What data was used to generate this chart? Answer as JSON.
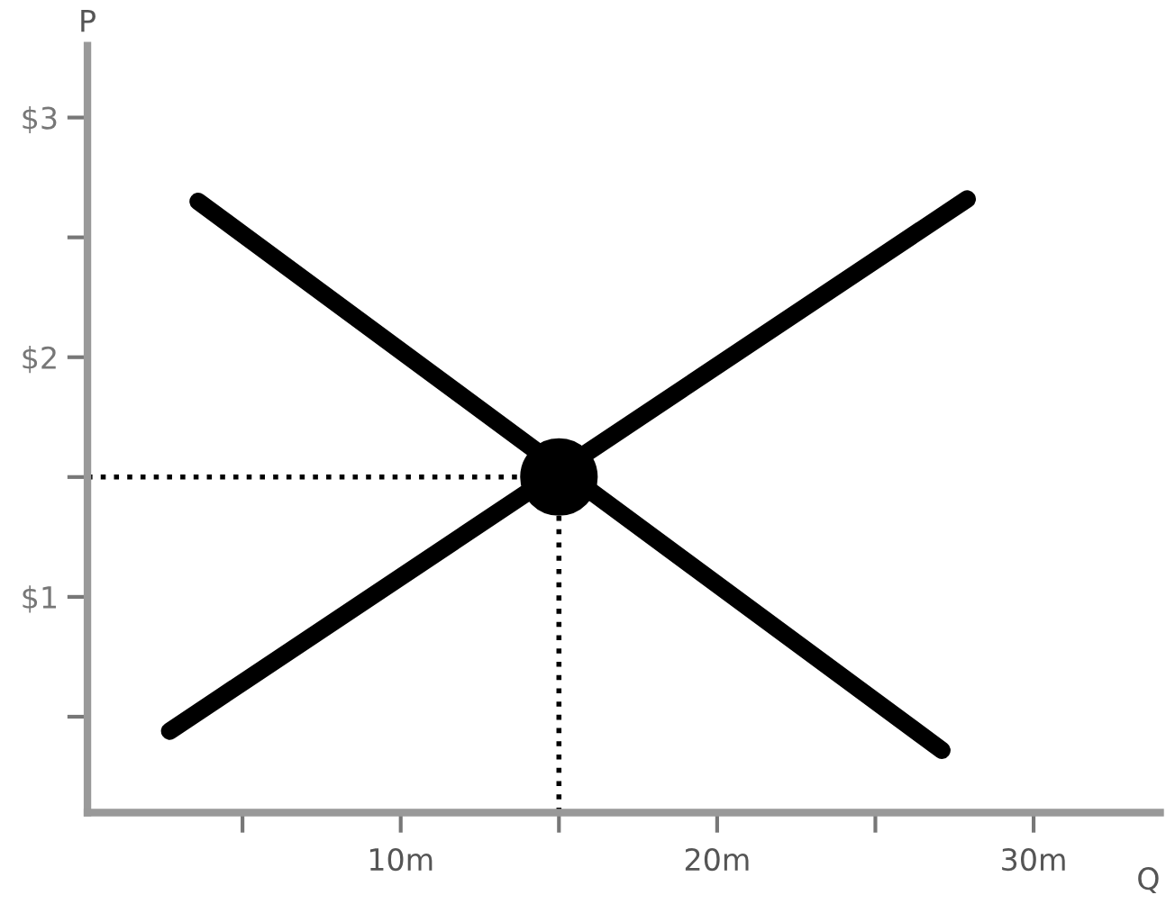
{
  "chart_data": {
    "type": "line",
    "xlabel": "Q",
    "ylabel": "P",
    "xlim": [
      0.1,
      34
    ],
    "xticks": [
      {
        "value": 5,
        "label": null
      },
      {
        "value": 10,
        "label": "10m"
      },
      {
        "value": 15,
        "label": null
      },
      {
        "value": 20,
        "label": "20m"
      },
      {
        "value": 25,
        "label": null
      },
      {
        "value": 30,
        "label": "30m"
      }
    ],
    "ylim": [
      0.1,
      3.3
    ],
    "yticks": [
      {
        "value": 0.5,
        "label": null
      },
      {
        "value": 1,
        "label": "$1"
      },
      {
        "value": 1.5,
        "label": null
      },
      {
        "value": 2,
        "label": "$2"
      },
      {
        "value": 2.5,
        "label": null
      },
      {
        "value": 3,
        "label": "$3"
      }
    ],
    "series": [
      {
        "color": "#000000",
        "x": [
          3.6,
          27.1
        ],
        "values": [
          2.65,
          0.36
        ]
      },
      {
        "color": "#000000",
        "x": [
          2.7,
          27.9
        ],
        "values": [
          0.44,
          2.66
        ]
      },
      {
        "type": "scatter",
        "marker": "circle",
        "color": "#000000",
        "x": [
          15
        ],
        "values": [
          1.5
        ]
      }
    ],
    "ref_lines": [
      {
        "axis": "y",
        "value": 1.5,
        "color": "#000000",
        "line_style": "dotted"
      },
      {
        "axis": "x",
        "value": 15,
        "color": "#000000",
        "line_style": "dotted"
      }
    ],
    "grid": false,
    "legend": false,
    "marker": "none",
    "line_style": "solid"
  }
}
